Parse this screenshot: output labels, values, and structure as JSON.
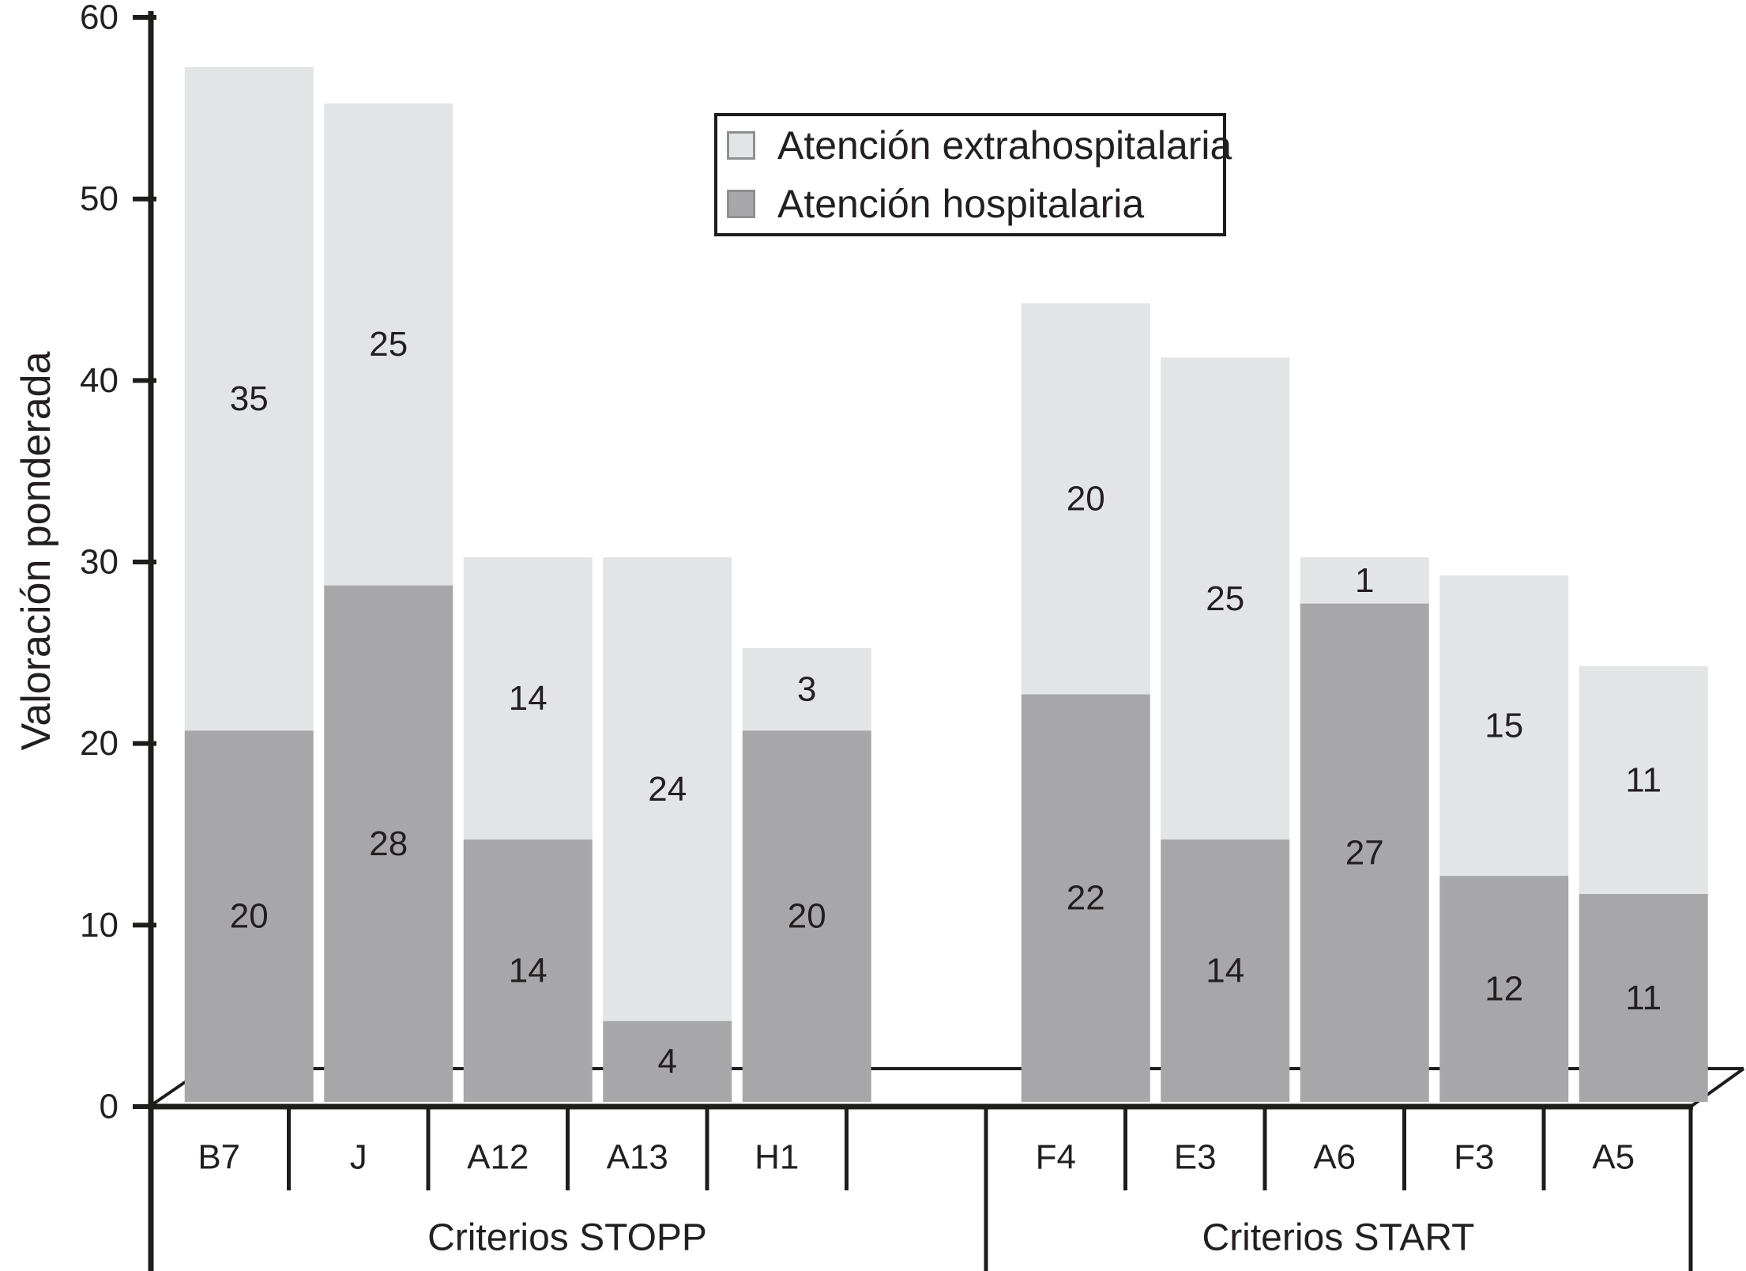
{
  "chart_data": {
    "type": "bar",
    "stacked": true,
    "title": "",
    "ylabel": "Valoración ponderada",
    "xlabel": "",
    "ylim": [
      0,
      60
    ],
    "yticks": [
      0,
      10,
      20,
      30,
      40,
      50,
      60
    ],
    "grid": false,
    "legend_position": "top-center-inside",
    "legend": {
      "items": [
        {
          "label": "Atención extrahospitalaria",
          "series": "extrahospitalaria"
        },
        {
          "label": "Atención hospitalaria",
          "series": "hospitalaria"
        }
      ]
    },
    "groups": [
      {
        "label": "Criterios STOPP",
        "categories": [
          "B7",
          "J",
          "A12",
          "A13",
          "H1"
        ]
      },
      {
        "label": "Criterios START",
        "categories": [
          "F4",
          "E3",
          "A6",
          "F3",
          "A5"
        ]
      }
    ],
    "categories": [
      "B7",
      "J",
      "A12",
      "A13",
      "H1",
      "F4",
      "E3",
      "A6",
      "F3",
      "A5"
    ],
    "series": [
      {
        "id": "hospitalaria",
        "name": "Atención hospitalaria",
        "stack_order": "bottom",
        "color": "#a7a7a9",
        "values": [
          20,
          28,
          14,
          4,
          20,
          22,
          14,
          27,
          12,
          11
        ]
      },
      {
        "id": "extrahospitalaria",
        "name": "Atención extrahospitalaria",
        "stack_order": "top",
        "color": "#e3e4e6",
        "values": [
          35,
          25,
          14,
          24,
          3,
          20,
          25,
          1,
          15,
          11
        ]
      }
    ],
    "totals_visual_note": "",
    "colors": {
      "line": "#1d1d1b",
      "text": "#231f20",
      "swatch_border": "#8e8f91",
      "background": "#ffffff"
    }
  }
}
